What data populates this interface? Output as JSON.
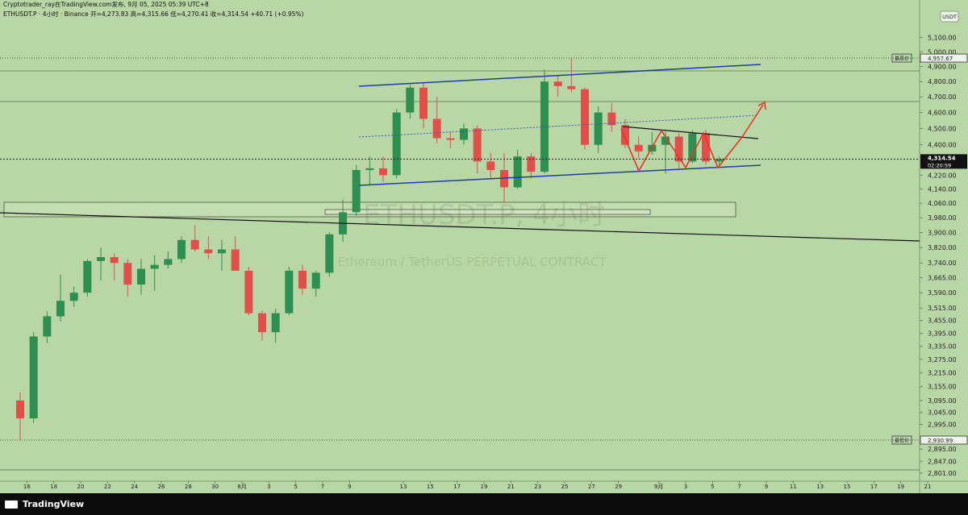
{
  "header": {
    "author": "Cryptotrader_ray在TradingView.com发布, 9月 05, 2025 05:39 UTC+8",
    "symbol_line": "ETHUSDT.P · 4小时 · Binance  开=4,273.83  高=4,315.66  低=4,270.41  收=4,314.54  +40.71 (+0.95%)",
    "currency": "USDT"
  },
  "footer": {
    "brand": "TradingView"
  },
  "chart_data": {
    "type": "candlestick",
    "title": "ETHUSDT.P, 4小时",
    "subtitle": "Ethereum / TetherUS PERPETUAL CONTRACT",
    "up_color": "#2f8f4e",
    "down_color": "#e0504b",
    "log_scale": true,
    "x": [
      "2025-07-15",
      "2025-07-16",
      "2025-07-17",
      "2025-07-18",
      "2025-07-19",
      "2025-07-20",
      "2025-07-21",
      "2025-07-22",
      "2025-07-23",
      "2025-07-24",
      "2025-07-25",
      "2025-07-26",
      "2025-07-27",
      "2025-07-28",
      "2025-07-29",
      "2025-07-30",
      "2025-07-31",
      "2025-08-01",
      "2025-08-02",
      "2025-08-03",
      "2025-08-04",
      "2025-08-05",
      "2025-08-06",
      "2025-08-07",
      "2025-08-08",
      "2025-08-09",
      "2025-08-10",
      "2025-08-11",
      "2025-08-12",
      "2025-08-13",
      "2025-08-14",
      "2025-08-15",
      "2025-08-16",
      "2025-08-17",
      "2025-08-18",
      "2025-08-19",
      "2025-08-20",
      "2025-08-21",
      "2025-08-22",
      "2025-08-23",
      "2025-08-24",
      "2025-08-25",
      "2025-08-26",
      "2025-08-27",
      "2025-08-28",
      "2025-08-29",
      "2025-08-30",
      "2025-08-31",
      "2025-09-01",
      "2025-09-02",
      "2025-09-03",
      "2025-09-04",
      "2025-09-05"
    ],
    "open": [
      3095,
      3020,
      3380,
      3475,
      3550,
      3590,
      3750,
      3770,
      3740,
      3630,
      3710,
      3730,
      3760,
      3860,
      3810,
      3790,
      3810,
      3700,
      3490,
      3400,
      3490,
      3700,
      3610,
      3690,
      3890,
      4010,
      4250,
      4260,
      4220,
      4600,
      4760,
      4560,
      4440,
      4430,
      4500,
      4300,
      4250,
      4150,
      4330,
      4240,
      4800,
      4770,
      4750,
      4400,
      4600,
      4520,
      4400,
      4360,
      4400,
      4450,
      4300,
      4470,
      4300
    ],
    "high": [
      3130,
      3400,
      3500,
      3680,
      3620,
      3760,
      3820,
      3790,
      3760,
      3760,
      3780,
      3800,
      3880,
      3940,
      3880,
      3860,
      3880,
      3720,
      3500,
      3510,
      3720,
      3730,
      3700,
      3900,
      4080,
      4280,
      4330,
      4330,
      4620,
      4780,
      4790,
      4700,
      4480,
      4530,
      4520,
      4350,
      4350,
      4370,
      4350,
      4880,
      4840,
      4960,
      4760,
      4640,
      4660,
      4560,
      4450,
      4480,
      4480,
      4470,
      4490,
      4490,
      4330
    ],
    "low": [
      2930,
      3000,
      3350,
      3450,
      3520,
      3570,
      3650,
      3650,
      3570,
      3580,
      3600,
      3710,
      3740,
      3800,
      3760,
      3700,
      3700,
      3480,
      3360,
      3350,
      3480,
      3580,
      3570,
      3670,
      3850,
      3990,
      4160,
      4180,
      4200,
      4560,
      4500,
      4410,
      4380,
      4400,
      4230,
      4200,
      4060,
      4140,
      4200,
      4230,
      4700,
      4730,
      4370,
      4350,
      4480,
      4380,
      4320,
      4340,
      4230,
      4260,
      4290,
      4280,
      4270
    ],
    "close": [
      3020,
      3380,
      3475,
      3550,
      3590,
      3750,
      3770,
      3740,
      3630,
      3710,
      3730,
      3760,
      3860,
      3810,
      3790,
      3810,
      3700,
      3490,
      3400,
      3490,
      3700,
      3610,
      3690,
      3890,
      4010,
      4250,
      4260,
      4220,
      4600,
      4760,
      4560,
      4440,
      4430,
      4500,
      4300,
      4250,
      4150,
      4330,
      4240,
      4800,
      4770,
      4750,
      4400,
      4600,
      4520,
      4400,
      4360,
      4400,
      4450,
      4300,
      4470,
      4300,
      4315
    ],
    "xlim": [
      "2025-07-14",
      "2025-09-24"
    ],
    "xticks": [
      {
        "value": "2025-07-16",
        "label": "16"
      },
      {
        "value": "2025-07-18",
        "label": "18"
      },
      {
        "value": "2025-07-20",
        "label": "20"
      },
      {
        "value": "2025-07-22",
        "label": "22"
      },
      {
        "value": "2025-07-24",
        "label": "24"
      },
      {
        "value": "2025-07-26",
        "label": "26"
      },
      {
        "value": "2025-07-28",
        "label": "28"
      },
      {
        "value": "2025-07-30",
        "label": "30"
      },
      {
        "value": "2025-08-01",
        "label": "8月"
      },
      {
        "value": "2025-08-03",
        "label": "3"
      },
      {
        "value": "2025-08-05",
        "label": "5"
      },
      {
        "value": "2025-08-07",
        "label": "7"
      },
      {
        "value": "2025-08-09",
        "label": "9"
      },
      {
        "value": "2025-08-13",
        "label": "13"
      },
      {
        "value": "2025-08-15",
        "label": "15"
      },
      {
        "value": "2025-08-17",
        "label": "17"
      },
      {
        "value": "2025-08-19",
        "label": "19"
      },
      {
        "value": "2025-08-21",
        "label": "21"
      },
      {
        "value": "2025-08-23",
        "label": "23"
      },
      {
        "value": "2025-08-25",
        "label": "25"
      },
      {
        "value": "2025-08-27",
        "label": "27"
      },
      {
        "value": "2025-08-29",
        "label": "29"
      },
      {
        "value": "2025-09-01",
        "label": "9月"
      },
      {
        "value": "2025-09-03",
        "label": "3"
      },
      {
        "value": "2025-09-05",
        "label": "5"
      },
      {
        "value": "2025-09-07",
        "label": "7"
      },
      {
        "value": "2025-09-09",
        "label": "9"
      },
      {
        "value": "2025-09-11",
        "label": "11"
      },
      {
        "value": "2025-09-13",
        "label": "13"
      },
      {
        "value": "2025-09-15",
        "label": "15"
      },
      {
        "value": "2025-09-17",
        "label": "17"
      },
      {
        "value": "2025-09-19",
        "label": "19"
      },
      {
        "value": "2025-09-21",
        "label": "21"
      }
    ],
    "ylim": [
      2770,
      5370
    ],
    "yticks": [
      {
        "value": 5100,
        "label": "5,100.00"
      },
      {
        "value": 5000,
        "label": "5,000.00"
      },
      {
        "value": 4900,
        "label": "4,900.00"
      },
      {
        "value": 4800,
        "label": "4,800.00"
      },
      {
        "value": 4700,
        "label": "4,700.00"
      },
      {
        "value": 4600,
        "label": "4,600.00"
      },
      {
        "value": 4500,
        "label": "4,500.00"
      },
      {
        "value": 4400,
        "label": "4,400.00"
      },
      {
        "value": 4220,
        "label": "4,220.00"
      },
      {
        "value": 4140,
        "label": "4,140.00"
      },
      {
        "value": 4060,
        "label": "4,060.00"
      },
      {
        "value": 3980,
        "label": "3,980.00"
      },
      {
        "value": 3900,
        "label": "3,900.00"
      },
      {
        "value": 3820,
        "label": "3,820.00"
      },
      {
        "value": 3740,
        "label": "3,740.00"
      },
      {
        "value": 3665,
        "label": "3,665.00"
      },
      {
        "value": 3590,
        "label": "3,590.00"
      },
      {
        "value": 3515,
        "label": "3,515.00"
      },
      {
        "value": 3455,
        "label": "3,455.00"
      },
      {
        "value": 3395,
        "label": "3,395.00"
      },
      {
        "value": 3335,
        "label": "3,335.00"
      },
      {
        "value": 3275,
        "label": "3,275.00"
      },
      {
        "value": 3215,
        "label": "3,215.00"
      },
      {
        "value": 3155,
        "label": "3,155.00"
      },
      {
        "value": 3095,
        "label": "3,095.00"
      },
      {
        "value": 3045,
        "label": "3,045.00"
      },
      {
        "value": 2995,
        "label": "2,995.00"
      },
      {
        "value": 2895,
        "label": "2,895.00"
      },
      {
        "value": 2847,
        "label": "2,847.00"
      },
      {
        "value": 2801,
        "label": "2,801.00"
      }
    ],
    "price_lines": [
      {
        "name": "最高价",
        "value": 4957.67,
        "label": "4,957.67"
      },
      {
        "name": "最低价",
        "value": 2930.99,
        "label": "2,930.99"
      }
    ],
    "last_price": {
      "value": 4314.54,
      "label": "4,314.54",
      "countdown": "02:20:59"
    }
  }
}
